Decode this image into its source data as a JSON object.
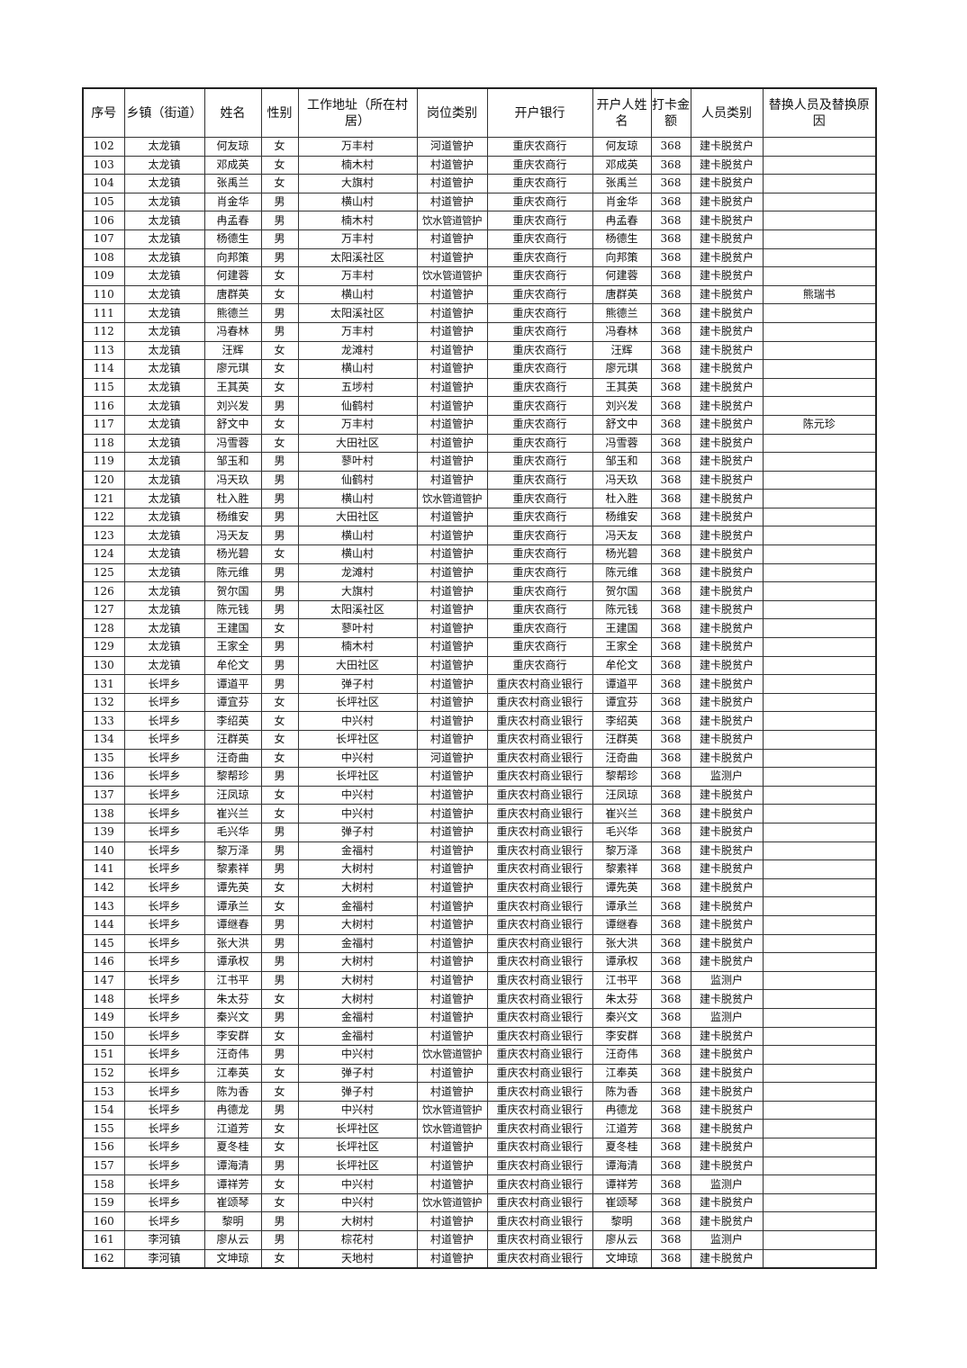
{
  "table": {
    "headers": [
      "序号",
      "乡镇（街道）",
      "姓名",
      "性别",
      "工作地址（所在村居）",
      "岗位类别",
      "开户银行",
      "开户人姓名",
      "打卡金额",
      "人员类别",
      "替换人员及替换原因"
    ],
    "rows": [
      [
        "102",
        "太龙镇",
        "何友琼",
        "女",
        "万丰村",
        "河道管护",
        "重庆农商行",
        "何友琼",
        "368",
        "建卡脱贫户",
        ""
      ],
      [
        "103",
        "太龙镇",
        "邓成英",
        "女",
        "楠木村",
        "村道管护",
        "重庆农商行",
        "邓成英",
        "368",
        "建卡脱贫户",
        ""
      ],
      [
        "104",
        "太龙镇",
        "张禹兰",
        "女",
        "大旗村",
        "村道管护",
        "重庆农商行",
        "张禹兰",
        "368",
        "建卡脱贫户",
        ""
      ],
      [
        "105",
        "太龙镇",
        "肖金华",
        "男",
        "横山村",
        "村道管护",
        "重庆农商行",
        "肖金华",
        "368",
        "建卡脱贫户",
        ""
      ],
      [
        "106",
        "太龙镇",
        "冉孟春",
        "男",
        "楠木村",
        "饮水管道管护",
        "重庆农商行",
        "冉孟春",
        "368",
        "建卡脱贫户",
        ""
      ],
      [
        "107",
        "太龙镇",
        "杨德生",
        "男",
        "万丰村",
        "村道管护",
        "重庆农商行",
        "杨德生",
        "368",
        "建卡脱贫户",
        ""
      ],
      [
        "108",
        "太龙镇",
        "向邦策",
        "男",
        "太阳溪社区",
        "村道管护",
        "重庆农商行",
        "向邦策",
        "368",
        "建卡脱贫户",
        ""
      ],
      [
        "109",
        "太龙镇",
        "何建蓉",
        "女",
        "万丰村",
        "饮水管道管护",
        "重庆农商行",
        "何建蓉",
        "368",
        "建卡脱贫户",
        ""
      ],
      [
        "110",
        "太龙镇",
        "唐群英",
        "女",
        "横山村",
        "村道管护",
        "重庆农商行",
        "唐群英",
        "368",
        "建卡脱贫户",
        "熊瑞书"
      ],
      [
        "111",
        "太龙镇",
        "熊德兰",
        "男",
        "太阳溪社区",
        "村道管护",
        "重庆农商行",
        "熊德兰",
        "368",
        "建卡脱贫户",
        ""
      ],
      [
        "112",
        "太龙镇",
        "冯春林",
        "男",
        "万丰村",
        "村道管护",
        "重庆农商行",
        "冯春林",
        "368",
        "建卡脱贫户",
        ""
      ],
      [
        "113",
        "太龙镇",
        "汪辉",
        "女",
        "龙滩村",
        "村道管护",
        "重庆农商行",
        "汪辉",
        "368",
        "建卡脱贫户",
        ""
      ],
      [
        "114",
        "太龙镇",
        "廖元琪",
        "女",
        "横山村",
        "村道管护",
        "重庆农商行",
        "廖元琪",
        "368",
        "建卡脱贫户",
        ""
      ],
      [
        "115",
        "太龙镇",
        "王其英",
        "女",
        "五埗村",
        "村道管护",
        "重庆农商行",
        "王其英",
        "368",
        "建卡脱贫户",
        ""
      ],
      [
        "116",
        "太龙镇",
        "刘兴发",
        "男",
        "仙鹤村",
        "村道管护",
        "重庆农商行",
        "刘兴发",
        "368",
        "建卡脱贫户",
        ""
      ],
      [
        "117",
        "太龙镇",
        "舒文中",
        "女",
        "万丰村",
        "村道管护",
        "重庆农商行",
        "舒文中",
        "368",
        "建卡脱贫户",
        "陈元珍"
      ],
      [
        "118",
        "太龙镇",
        "冯雪蓉",
        "女",
        "大田社区",
        "村道管护",
        "重庆农商行",
        "冯雪蓉",
        "368",
        "建卡脱贫户",
        ""
      ],
      [
        "119",
        "太龙镇",
        "邹玉和",
        "男",
        "蓼叶村",
        "村道管护",
        "重庆农商行",
        "邹玉和",
        "368",
        "建卡脱贫户",
        ""
      ],
      [
        "120",
        "太龙镇",
        "冯天玖",
        "男",
        "仙鹤村",
        "村道管护",
        "重庆农商行",
        "冯天玖",
        "368",
        "建卡脱贫户",
        ""
      ],
      [
        "121",
        "太龙镇",
        "杜入胜",
        "男",
        "横山村",
        "饮水管道管护",
        "重庆农商行",
        "杜入胜",
        "368",
        "建卡脱贫户",
        ""
      ],
      [
        "122",
        "太龙镇",
        "杨维安",
        "男",
        "大田社区",
        "村道管护",
        "重庆农商行",
        "杨维安",
        "368",
        "建卡脱贫户",
        ""
      ],
      [
        "123",
        "太龙镇",
        "冯天友",
        "男",
        "横山村",
        "村道管护",
        "重庆农商行",
        "冯天友",
        "368",
        "建卡脱贫户",
        ""
      ],
      [
        "124",
        "太龙镇",
        "杨光碧",
        "女",
        "横山村",
        "村道管护",
        "重庆农商行",
        "杨光碧",
        "368",
        "建卡脱贫户",
        ""
      ],
      [
        "125",
        "太龙镇",
        "陈元维",
        "男",
        "龙滩村",
        "村道管护",
        "重庆农商行",
        "陈元维",
        "368",
        "建卡脱贫户",
        ""
      ],
      [
        "126",
        "太龙镇",
        "贺尔国",
        "男",
        "大旗村",
        "村道管护",
        "重庆农商行",
        "贺尔国",
        "368",
        "建卡脱贫户",
        ""
      ],
      [
        "127",
        "太龙镇",
        "陈元钱",
        "男",
        "太阳溪社区",
        "村道管护",
        "重庆农商行",
        "陈元钱",
        "368",
        "建卡脱贫户",
        ""
      ],
      [
        "128",
        "太龙镇",
        "王建国",
        "女",
        "蓼叶村",
        "村道管护",
        "重庆农商行",
        "王建国",
        "368",
        "建卡脱贫户",
        ""
      ],
      [
        "129",
        "太龙镇",
        "王家全",
        "男",
        "楠木村",
        "村道管护",
        "重庆农商行",
        "王家全",
        "368",
        "建卡脱贫户",
        ""
      ],
      [
        "130",
        "太龙镇",
        "牟伦文",
        "男",
        "大田社区",
        "村道管护",
        "重庆农商行",
        "牟伦文",
        "368",
        "建卡脱贫户",
        ""
      ],
      [
        "131",
        "长坪乡",
        "谭道平",
        "男",
        "弹子村",
        "村道管护",
        "重庆农村商业银行",
        "谭道平",
        "368",
        "建卡脱贫户",
        ""
      ],
      [
        "132",
        "长坪乡",
        "谭宜芬",
        "女",
        "长坪社区",
        "村道管护",
        "重庆农村商业银行",
        "谭宜芬",
        "368",
        "建卡脱贫户",
        ""
      ],
      [
        "133",
        "长坪乡",
        "李绍英",
        "女",
        "中兴村",
        "村道管护",
        "重庆农村商业银行",
        "李绍英",
        "368",
        "建卡脱贫户",
        ""
      ],
      [
        "134",
        "长坪乡",
        "汪群英",
        "女",
        "长坪社区",
        "村道管护",
        "重庆农村商业银行",
        "汪群英",
        "368",
        "建卡脱贫户",
        ""
      ],
      [
        "135",
        "长坪乡",
        "汪奇曲",
        "女",
        "中兴村",
        "河道管护",
        "重庆农村商业银行",
        "汪奇曲",
        "368",
        "建卡脱贫户",
        ""
      ],
      [
        "136",
        "长坪乡",
        "黎帮珍",
        "男",
        "长坪社区",
        "村道管护",
        "重庆农村商业银行",
        "黎帮珍",
        "368",
        "监测户",
        ""
      ],
      [
        "137",
        "长坪乡",
        "汪凤琼",
        "女",
        "中兴村",
        "村道管护",
        "重庆农村商业银行",
        "汪凤琼",
        "368",
        "建卡脱贫户",
        ""
      ],
      [
        "138",
        "长坪乡",
        "崔兴兰",
        "女",
        "中兴村",
        "村道管护",
        "重庆农村商业银行",
        "崔兴兰",
        "368",
        "建卡脱贫户",
        ""
      ],
      [
        "139",
        "长坪乡",
        "毛兴华",
        "男",
        "弹子村",
        "村道管护",
        "重庆农村商业银行",
        "毛兴华",
        "368",
        "建卡脱贫户",
        ""
      ],
      [
        "140",
        "长坪乡",
        "黎万泽",
        "男",
        "金福村",
        "村道管护",
        "重庆农村商业银行",
        "黎万泽",
        "368",
        "建卡脱贫户",
        ""
      ],
      [
        "141",
        "长坪乡",
        "黎素祥",
        "男",
        "大树村",
        "村道管护",
        "重庆农村商业银行",
        "黎素祥",
        "368",
        "建卡脱贫户",
        ""
      ],
      [
        "142",
        "长坪乡",
        "谭先英",
        "女",
        "大树村",
        "村道管护",
        "重庆农村商业银行",
        "谭先英",
        "368",
        "建卡脱贫户",
        ""
      ],
      [
        "143",
        "长坪乡",
        "谭承兰",
        "女",
        "金福村",
        "村道管护",
        "重庆农村商业银行",
        "谭承兰",
        "368",
        "建卡脱贫户",
        ""
      ],
      [
        "144",
        "长坪乡",
        "谭继春",
        "男",
        "大树村",
        "村道管护",
        "重庆农村商业银行",
        "谭继春",
        "368",
        "建卡脱贫户",
        ""
      ],
      [
        "145",
        "长坪乡",
        "张大洪",
        "男",
        "金福村",
        "村道管护",
        "重庆农村商业银行",
        "张大洪",
        "368",
        "建卡脱贫户",
        ""
      ],
      [
        "146",
        "长坪乡",
        "谭承权",
        "男",
        "大树村",
        "村道管护",
        "重庆农村商业银行",
        "谭承权",
        "368",
        "建卡脱贫户",
        ""
      ],
      [
        "147",
        "长坪乡",
        "江书平",
        "男",
        "大树村",
        "村道管护",
        "重庆农村商业银行",
        "江书平",
        "368",
        "监测户",
        ""
      ],
      [
        "148",
        "长坪乡",
        "朱太芬",
        "女",
        "大树村",
        "村道管护",
        "重庆农村商业银行",
        "朱太芬",
        "368",
        "建卡脱贫户",
        ""
      ],
      [
        "149",
        "长坪乡",
        "秦兴文",
        "男",
        "金福村",
        "村道管护",
        "重庆农村商业银行",
        "秦兴文",
        "368",
        "监测户",
        ""
      ],
      [
        "150",
        "长坪乡",
        "李安群",
        "女",
        "金福村",
        "村道管护",
        "重庆农村商业银行",
        "李安群",
        "368",
        "建卡脱贫户",
        ""
      ],
      [
        "151",
        "长坪乡",
        "汪奇伟",
        "男",
        "中兴村",
        "饮水管道管护",
        "重庆农村商业银行",
        "汪奇伟",
        "368",
        "建卡脱贫户",
        ""
      ],
      [
        "152",
        "长坪乡",
        "江奉英",
        "女",
        "弹子村",
        "村道管护",
        "重庆农村商业银行",
        "江奉英",
        "368",
        "建卡脱贫户",
        ""
      ],
      [
        "153",
        "长坪乡",
        "陈为香",
        "女",
        "弹子村",
        "村道管护",
        "重庆农村商业银行",
        "陈为香",
        "368",
        "建卡脱贫户",
        ""
      ],
      [
        "154",
        "长坪乡",
        "冉德龙",
        "男",
        "中兴村",
        "饮水管道管护",
        "重庆农村商业银行",
        "冉德龙",
        "368",
        "建卡脱贫户",
        ""
      ],
      [
        "155",
        "长坪乡",
        "江道芳",
        "女",
        "长坪社区",
        "饮水管道管护",
        "重庆农村商业银行",
        "江道芳",
        "368",
        "建卡脱贫户",
        ""
      ],
      [
        "156",
        "长坪乡",
        "夏冬桂",
        "女",
        "长坪社区",
        "村道管护",
        "重庆农村商业银行",
        "夏冬桂",
        "368",
        "建卡脱贫户",
        ""
      ],
      [
        "157",
        "长坪乡",
        "谭海清",
        "男",
        "长坪社区",
        "村道管护",
        "重庆农村商业银行",
        "谭海清",
        "368",
        "建卡脱贫户",
        ""
      ],
      [
        "158",
        "长坪乡",
        "谭祥芳",
        "女",
        "中兴村",
        "村道管护",
        "重庆农村商业银行",
        "谭祥芳",
        "368",
        "监测户",
        ""
      ],
      [
        "159",
        "长坪乡",
        "崔颂琴",
        "女",
        "中兴村",
        "饮水管道管护",
        "重庆农村商业银行",
        "崔颂琴",
        "368",
        "建卡脱贫户",
        ""
      ],
      [
        "160",
        "长坪乡",
        "黎明",
        "男",
        "大树村",
        "村道管护",
        "重庆农村商业银行",
        "黎明",
        "368",
        "建卡脱贫户",
        ""
      ],
      [
        "161",
        "李河镇",
        "廖从云",
        "男",
        "棕花村",
        "村道管护",
        "重庆农村商业银行",
        "廖从云",
        "368",
        "监测户",
        ""
      ],
      [
        "162",
        "李河镇",
        "文坤琼",
        "女",
        "天地村",
        "村道管护",
        "重庆农村商业银行",
        "文坤琼",
        "368",
        "建卡脱贫户",
        ""
      ]
    ]
  }
}
